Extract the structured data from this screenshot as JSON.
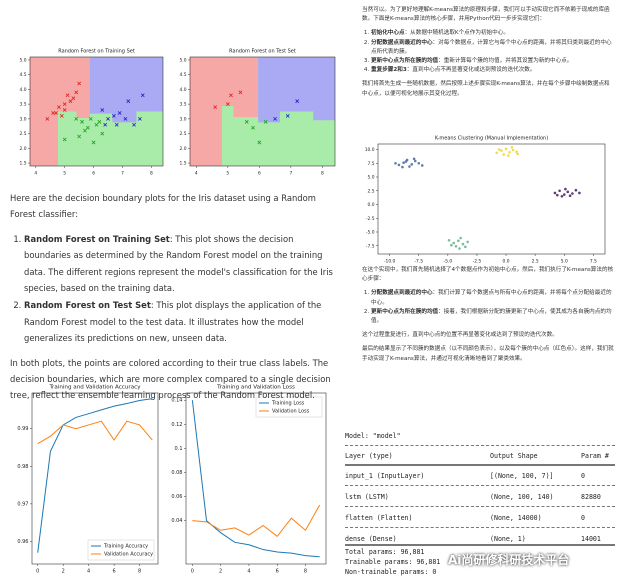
{
  "boundary_train": {
    "type": "scatter",
    "title": "Random Forest on Training Set",
    "marker": "x",
    "xlim": [
      3.8,
      8.4
    ],
    "ylim": [
      1.4,
      5.1
    ],
    "xticks": [
      4,
      5,
      6,
      7,
      8
    ],
    "yticks": [
      1.5,
      {
        "value": 2,
        "label": "2.0"
      },
      2.5,
      {
        "value": 3,
        "label": "3.0"
      },
      3.5,
      {
        "value": 4,
        "label": "4.0"
      },
      4.5,
      {
        "value": 5,
        "label": "5.0"
      }
    ],
    "series": [
      {
        "color": "#e02020",
        "x": [
          4.4,
          4.6,
          4.8,
          5.0,
          5.1,
          5.2,
          5.4,
          4.9,
          5.0,
          5.5,
          4.7,
          5.3
        ],
        "y": [
          3.0,
          3.2,
          3.4,
          3.5,
          3.8,
          3.6,
          3.9,
          3.1,
          3.3,
          4.2,
          3.2,
          3.7
        ]
      },
      {
        "color": "#20a020",
        "x": [
          5.0,
          5.5,
          5.7,
          5.8,
          6.0,
          6.1,
          6.3,
          5.6,
          6.2,
          5.9,
          5.4
        ],
        "y": [
          2.3,
          2.4,
          2.6,
          2.7,
          2.2,
          2.8,
          2.5,
          2.9,
          2.9,
          3.0,
          3.0
        ]
      },
      {
        "color": "#2020d0",
        "x": [
          6.3,
          6.5,
          6.7,
          6.9,
          7.2,
          7.7,
          6.4,
          7.1,
          6.8,
          7.4,
          7.6
        ],
        "y": [
          3.3,
          3.0,
          3.1,
          3.2,
          3.6,
          3.8,
          2.8,
          3.0,
          2.8,
          2.8,
          3.0
        ]
      }
    ]
  },
  "boundary_test": {
    "type": "scatter",
    "title": "Random Forest on Test Set",
    "marker": "x",
    "xlim": [
      3.8,
      8.4
    ],
    "ylim": [
      1.4,
      5.1
    ],
    "xticks": [
      4,
      5,
      6,
      7,
      8
    ],
    "yticks": [
      1.5,
      {
        "value": 2,
        "label": "2.0"
      },
      2.5,
      {
        "value": 3,
        "label": "3.0"
      },
      3.5,
      {
        "value": 4,
        "label": "4.0"
      },
      4.5,
      {
        "value": 5,
        "label": "5.0"
      }
    ],
    "series": [
      {
        "color": "#e02020",
        "x": [
          4.6,
          5.0,
          5.1,
          5.4
        ],
        "y": [
          3.4,
          3.5,
          3.8,
          3.9
        ]
      },
      {
        "color": "#20a020",
        "x": [
          5.6,
          5.8,
          6.0,
          6.2
        ],
        "y": [
          2.9,
          2.7,
          2.2,
          2.9
        ]
      },
      {
        "color": "#2020d0",
        "x": [
          6.5,
          6.9,
          7.2
        ],
        "y": [
          3.0,
          3.1,
          3.6
        ]
      }
    ]
  },
  "explanation": {
    "intro": "Here are the decision boundary plots for the Iris dataset using a Random Forest classifier:",
    "items": [
      {
        "label": "Random Forest on Training Set",
        "text": ": This plot shows the decision boundaries as determined by the Random Forest model on the training data. The different regions represent the model's classification for the Iris species, based on the training data."
      },
      {
        "label": "Random Forest on Test Set",
        "text": ": This plot displays the application of the Random Forest model to the test data. It illustrates how the model generalizes its predictions on new, unseen data."
      }
    ],
    "outro": "In both plots, the points are colored according to their true class labels. The decision boundaries, which are more complex compared to a single decision tree, reflect the ensemble learning process of the Random Forest model."
  },
  "kmeans_text": {
    "intro": "当然可以。为了更好地理解K-means算法的原理和步骤，我们可以手动实现它而不依赖于现成的库函数。下面是K-means算法的核心步骤，并用Python代码一步步实现它们：",
    "steps": [
      {
        "label": "初始化中心点",
        "text": "：从数据中随机选取K个点作为初始中心。"
      },
      {
        "label": "分配数据点到最近的中心",
        "text": "：对每个数据点，计算它与每个中心点的距离，并将其归类到最近的中心点所代表的簇。"
      },
      {
        "label": "更新中心点为所在簇的均值",
        "text": "：重新计算每个簇的均值，并将其设置为新的中心点。"
      },
      {
        "label": "重复步骤2和3",
        "text": "：直到中心点不再显著变化或达到预设的迭代次数。"
      }
    ],
    "plan": "我们将首先生成一些随机数据，然后按照上述步骤实现K-means算法，并在每个步骤中绘制数据点和中心点，以便可视化地展示其变化过程。",
    "after": "在这个实现中，我们首先随机选择了4个数据点作为初始中心点。然后，我们执行了K-means算法的核心步骤：",
    "after_steps": [
      {
        "label": "分配数据点到最近的中心",
        "text": "：我们计算了每个数据点与所有中心点的距离，并将每个点分配给最近的中心。"
      },
      {
        "label": "更新中心点为所在簇的均值",
        "text": "：接着，我们根据新分配的簇更新了中心点，使其成为各自簇内点的均值。"
      }
    ],
    "repeat": "这个过程重复进行，直到中心点的位置不再显著变化或达到了预设的迭代次数。",
    "result": "最后的结果显示了不同簇的数据点（以不同颜色表示），以及每个簇的中心点（红色点）。这样，我们就手动实现了K-means算法，并通过可视化清晰地看到了聚类效果。"
  },
  "kmeans_chart": {
    "type": "scatter",
    "title": "K-means Clustering (Manual Implementation)",
    "marker": "circle",
    "xlim": [
      -11,
      8.5
    ],
    "ylim": [
      -9,
      11
    ],
    "xticks": [
      {
        "value": -10,
        "label": "-10.0"
      },
      -7.5,
      {
        "value": -5,
        "label": "-5.0"
      },
      -2.5,
      {
        "value": 0,
        "label": "0.0"
      },
      2.5,
      {
        "value": 5,
        "label": "5.0"
      },
      7.5
    ],
    "yticks": [
      {
        "value": 10,
        "label": "10.0"
      },
      7.5,
      {
        "value": 5,
        "label": "5.0"
      },
      2.5,
      {
        "value": 0,
        "label": "0.0"
      },
      -2.5,
      {
        "value": -5,
        "label": "-5.0"
      },
      -7.5
    ],
    "series": [
      {
        "color": "#3b5b9a",
        "x": [
          -9.2,
          -8.8,
          -8.5,
          -8.1,
          -7.8,
          -7.5,
          -8.3,
          -8.9,
          -7.9,
          -8.6,
          -9.5,
          -7.2
        ],
        "y": [
          7.2,
          7.6,
          8.1,
          7.3,
          7.9,
          7.5,
          6.9,
          6.8,
          8.3,
          7.8,
          7.5,
          7.1
        ]
      },
      {
        "color": "#f0d020",
        "x": [
          -0.8,
          -0.4,
          0.0,
          0.3,
          0.6,
          -0.2,
          0.9,
          -0.6,
          0.2,
          0.5,
          1.0
        ],
        "y": [
          9.4,
          9.8,
          10.1,
          9.5,
          9.9,
          9.1,
          9.6,
          10.0,
          8.9,
          10.4,
          9.2
        ]
      },
      {
        "color": "#3a0a55",
        "x": [
          4.2,
          4.6,
          5.0,
          5.3,
          5.7,
          6.0,
          4.8,
          5.5,
          6.3,
          4.4,
          5.1
        ],
        "y": [
          2.1,
          2.5,
          1.8,
          2.3,
          2.0,
          2.6,
          1.5,
          1.6,
          2.1,
          1.7,
          2.8
        ]
      },
      {
        "color": "#5aaa80",
        "x": [
          -4.9,
          -4.5,
          -4.1,
          -3.7,
          -3.3,
          -4.3,
          -3.9,
          -4.7,
          -3.5,
          -4.0
        ],
        "y": [
          -6.5,
          -7.0,
          -6.6,
          -7.2,
          -6.8,
          -7.6,
          -6.1,
          -7.4,
          -7.7,
          -8.0
        ]
      }
    ]
  },
  "accuracy_chart": {
    "type": "line",
    "title": "Training and Validation Accuracy",
    "legend": "lower right",
    "x": [
      0,
      1,
      2,
      3,
      4,
      5,
      6,
      7,
      8,
      9
    ],
    "xlim": [
      -0.45,
      9.45
    ],
    "ylim": [
      0.954,
      0.9995
    ],
    "xticks": [
      0,
      2,
      4,
      6,
      8
    ],
    "yticks": [
      0.96,
      0.97,
      0.98,
      0.99
    ],
    "series": [
      {
        "name": "Training Accuracy",
        "color": "#1f77b4",
        "values": [
          0.957,
          0.984,
          0.991,
          0.993,
          0.994,
          0.995,
          0.996,
          0.9967,
          0.9975,
          0.998
        ]
      },
      {
        "name": "Validation Accuracy",
        "color": "#ff7f0e",
        "values": [
          0.986,
          0.988,
          0.991,
          0.99,
          0.991,
          0.992,
          0.987,
          0.992,
          0.991,
          0.987
        ]
      }
    ]
  },
  "loss_chart": {
    "type": "line",
    "title": "Training and Validation Loss",
    "legend": "upper right",
    "x": [
      0,
      1,
      2,
      3,
      4,
      5,
      6,
      7,
      8,
      9
    ],
    "xlim": [
      -0.45,
      9.45
    ],
    "ylim": [
      0.004,
      0.146
    ],
    "xticks": [
      0,
      2,
      4,
      6,
      8
    ],
    "yticks": [
      0.04,
      0.06,
      0.08,
      0.1,
      0.12,
      0.14
    ],
    "series": [
      {
        "name": "Training Loss",
        "color": "#1f77b4",
        "values": [
          0.14,
          0.04,
          0.03,
          0.022,
          0.02,
          0.016,
          0.014,
          0.013,
          0.011,
          0.01
        ]
      },
      {
        "name": "Validation Loss",
        "color": "#ff7f0e",
        "values": [
          0.04,
          0.039,
          0.032,
          0.034,
          0.028,
          0.036,
          0.027,
          0.042,
          0.032,
          0.053
        ]
      }
    ]
  },
  "model_summary": {
    "title": "Model: \"model\"",
    "headers": [
      "Layer (type)",
      "Output Shape",
      "Param #"
    ],
    "rows": [
      [
        "input_1 (InputLayer)",
        "[(None, 100, 7)]",
        "0"
      ],
      [
        "lstm (LSTM)",
        "(None, 100, 140)",
        "82880"
      ],
      [
        "flatten (Flatten)",
        "(None, 14000)",
        "0"
      ],
      [
        "dense (Dense)",
        "(None, 1)",
        "14001"
      ]
    ],
    "totals": [
      "Total params: 96,881",
      "Trainable params: 96,881",
      "Non-trainable params: 0"
    ]
  },
  "watermark": "Ai尚研修科研技术平台"
}
